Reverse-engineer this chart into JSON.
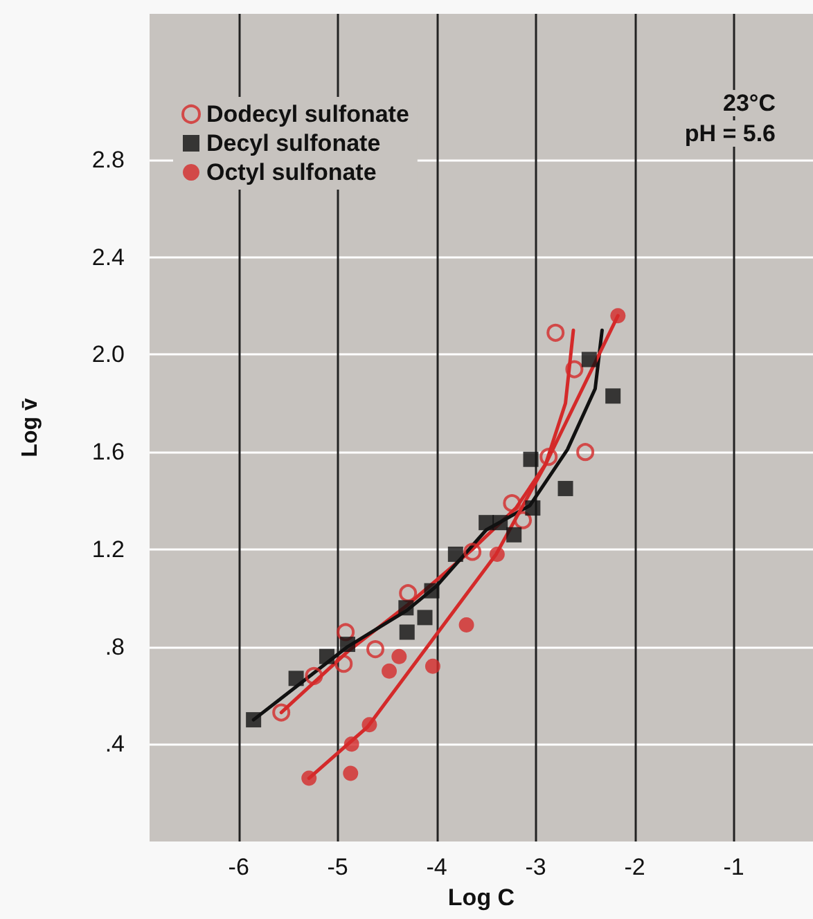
{
  "chart_data": {
    "type": "scatter",
    "xlabel": "Log C",
    "ylabel": "Log v̄",
    "annotations": [
      "23°C",
      "pH = 5.6"
    ],
    "xlim": [
      -6.9,
      -0.2
    ],
    "xticks": [
      -6,
      -5,
      -4,
      -3,
      -2,
      -1
    ],
    "ylim": [
      0,
      3.4
    ],
    "yticks": [
      {
        "value": 0.4,
        "label": ".4"
      },
      {
        "value": 0.8,
        "label": ".8"
      },
      1.2,
      1.6,
      {
        "value": 2,
        "label": "2.0"
      },
      2.4,
      2.8
    ],
    "grid": true,
    "legend": "top left",
    "series": [
      {
        "name": "Dodecyl sulfonate",
        "marker": "circle",
        "color": "#d42a2a",
        "x": [
          -5.57,
          -5.24,
          -4.94,
          -4.92,
          -4.62,
          -4.29,
          -3.64,
          -3.24,
          -3.13,
          -2.87,
          -2.5,
          -2.61,
          -2.8
        ],
        "values": [
          0.53,
          0.68,
          0.73,
          0.86,
          0.79,
          1.02,
          1.19,
          1.39,
          1.32,
          1.58,
          1.6,
          1.94,
          2.09
        ]
      },
      {
        "name": "Decyl sulfonate",
        "marker": "square",
        "color": "#111111",
        "x": [
          -5.85,
          -5.42,
          -5.11,
          -4.9,
          -4.31,
          -4.3,
          -4.12,
          -4.05,
          -3.81,
          -3.5,
          -3.36,
          -3.22,
          -3.03,
          -3.05,
          -2.7,
          -2.46,
          -2.22
        ],
        "values": [
          0.5,
          0.67,
          0.76,
          0.81,
          0.96,
          0.86,
          0.92,
          1.03,
          1.18,
          1.31,
          1.31,
          1.26,
          1.37,
          1.57,
          1.45,
          1.98,
          1.83
        ]
      },
      {
        "name": "Octyl sulfonate",
        "marker": "circle",
        "color": "#d42a2a",
        "x": [
          -5.29,
          -4.87,
          -4.86,
          -4.68,
          -4.48,
          -4.38,
          -4.04,
          -3.7,
          -3.39,
          -2.17
        ],
        "values": [
          0.26,
          0.28,
          0.4,
          0.48,
          0.7,
          0.76,
          0.72,
          0.89,
          1.18,
          2.16
        ]
      },
      {
        "type": "line",
        "marker": "none",
        "color": "#d42a2a",
        "x": [
          -5.57,
          -4.9,
          -4.3,
          -3.64,
          -3.2,
          -2.9,
          -2.7,
          -2.62
        ],
        "values": [
          0.53,
          0.78,
          0.97,
          1.2,
          1.37,
          1.55,
          1.8,
          2.1
        ]
      },
      {
        "type": "line",
        "marker": "none",
        "color": "#111111",
        "x": [
          -5.85,
          -4.9,
          -4.3,
          -4.0,
          -3.5,
          -3.06,
          -2.68,
          -2.4,
          -2.33
        ],
        "values": [
          0.5,
          0.8,
          0.95,
          1.05,
          1.28,
          1.38,
          1.61,
          1.86,
          2.1
        ]
      },
      {
        "type": "line",
        "marker": "none",
        "color": "#d42a2a",
        "x": [
          -5.29,
          -4.7,
          -3.4,
          -2.9,
          -2.17
        ],
        "values": [
          0.26,
          0.47,
          1.18,
          1.55,
          2.16
        ]
      }
    ]
  }
}
